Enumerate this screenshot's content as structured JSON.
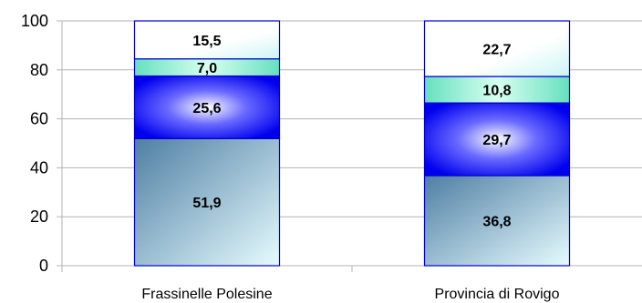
{
  "chart_data": {
    "type": "bar",
    "stacked": true,
    "categories": [
      "Frassinelle Polesine",
      "Provincia di Rovigo"
    ],
    "series": [
      {
        "values": [
          51.9,
          36.8
        ],
        "labels": [
          "51,9",
          "36,8"
        ],
        "color": "#5a88a8"
      },
      {
        "values": [
          25.6,
          29.7
        ],
        "labels": [
          "25,6",
          "29,7"
        ],
        "color": "#1010ff"
      },
      {
        "values": [
          7.0,
          10.8
        ],
        "labels": [
          "7,0",
          "10,8"
        ],
        "color": "#7fe8c8"
      },
      {
        "values": [
          15.5,
          22.7
        ],
        "labels": [
          "15,5",
          "22,7"
        ],
        "color": "#e8f8f8"
      }
    ],
    "ylim": [
      0,
      100
    ],
    "yticks": [
      0,
      20,
      40,
      60,
      80,
      100
    ],
    "grid": true,
    "legend": "none"
  }
}
